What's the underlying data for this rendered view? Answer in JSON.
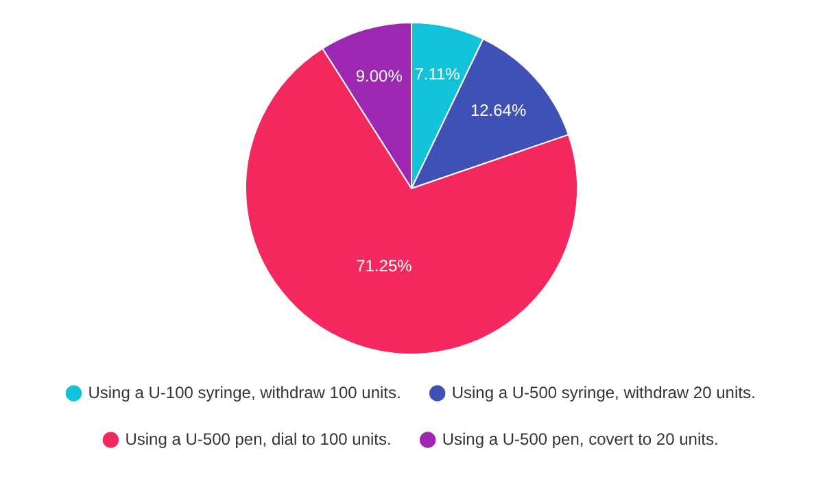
{
  "chart_data": {
    "type": "pie",
    "categories": [
      "Using a U-100 syringe, withdraw 100 units.",
      "Using a U-500 syringe, withdraw 20 units.",
      "Using a U-500 pen, dial to 100 units.",
      "Using a U-500 pen, covert to 20 units."
    ],
    "values": [
      7.11,
      12.64,
      71.25,
      9.0
    ],
    "colors": [
      "#12c2d8",
      "#3f51b5",
      "#f2285e",
      "#9c27b0"
    ],
    "value_labels": [
      "7.11%",
      "12.64%",
      "71.25%",
      "9.00%"
    ],
    "legend": "bottom"
  }
}
